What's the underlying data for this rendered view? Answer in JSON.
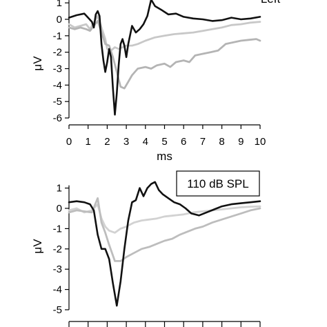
{
  "chart_data": [
    {
      "type": "line",
      "annotation": "Left",
      "xlabel": "ms",
      "ylabel": "μV",
      "xlim": [
        0,
        10
      ],
      "ylim": [
        -6,
        1
      ],
      "x_ticks": [
        "0",
        "1",
        "2",
        "3",
        "4",
        "5",
        "6",
        "7",
        "8",
        "9",
        "10"
      ],
      "y_ticks": [
        "1",
        "0",
        "-1",
        "-2",
        "-3",
        "-4",
        "-5",
        "-6"
      ],
      "grid": false,
      "series": [
        {
          "color": "#111111",
          "points": [
            [
              0,
              0.1
            ],
            [
              0.4,
              0.25
            ],
            [
              0.8,
              0.35
            ],
            [
              1.0,
              0.1
            ],
            [
              1.2,
              -0.15
            ],
            [
              1.3,
              -0.5
            ],
            [
              1.4,
              0.3
            ],
            [
              1.5,
              0.5
            ],
            [
              1.6,
              0.2
            ],
            [
              1.7,
              -1.5
            ],
            [
              1.8,
              -2.5
            ],
            [
              1.9,
              -3.2
            ],
            [
              2.0,
              -2.6
            ],
            [
              2.1,
              -1.8
            ],
            [
              2.2,
              -2.3
            ],
            [
              2.3,
              -4.2
            ],
            [
              2.4,
              -5.8
            ],
            [
              2.5,
              -4.5
            ],
            [
              2.6,
              -2.8
            ],
            [
              2.7,
              -1.5
            ],
            [
              2.8,
              -1.2
            ],
            [
              2.9,
              -1.6
            ],
            [
              3.0,
              -2.3
            ],
            [
              3.1,
              -1.5
            ],
            [
              3.3,
              -0.4
            ],
            [
              3.5,
              -0.8
            ],
            [
              3.7,
              -0.6
            ],
            [
              3.9,
              -0.3
            ],
            [
              4.1,
              0.2
            ],
            [
              4.3,
              1.2
            ],
            [
              4.5,
              0.8
            ],
            [
              4.8,
              0.6
            ],
            [
              5.2,
              0.3
            ],
            [
              5.6,
              0.35
            ],
            [
              6.0,
              0.15
            ],
            [
              6.5,
              0.05
            ],
            [
              7.0,
              0.0
            ],
            [
              7.5,
              -0.1
            ],
            [
              8.0,
              -0.05
            ],
            [
              8.5,
              0.1
            ],
            [
              9.0,
              0.0
            ],
            [
              9.5,
              0.05
            ],
            [
              10.0,
              0.15
            ]
          ]
        },
        {
          "color": "#c8c8c8",
          "points": [
            [
              0,
              -0.3
            ],
            [
              0.3,
              -0.5
            ],
            [
              0.6,
              -0.4
            ],
            [
              0.9,
              -0.3
            ],
            [
              1.1,
              -0.6
            ],
            [
              1.3,
              -0.2
            ],
            [
              1.5,
              0.2
            ],
            [
              1.7,
              -0.5
            ],
            [
              1.9,
              -1.2
            ],
            [
              2.0,
              -1.8
            ],
            [
              2.2,
              -1.9
            ],
            [
              2.4,
              -1.7
            ],
            [
              2.6,
              -1.8
            ],
            [
              2.8,
              -1.7
            ],
            [
              3.0,
              -1.6
            ],
            [
              3.3,
              -1.6
            ],
            [
              3.6,
              -1.5
            ],
            [
              4.0,
              -1.3
            ],
            [
              4.5,
              -1.1
            ],
            [
              5.0,
              -1.0
            ],
            [
              5.5,
              -0.9
            ],
            [
              6.0,
              -0.85
            ],
            [
              6.5,
              -0.8
            ],
            [
              7.0,
              -0.7
            ],
            [
              7.5,
              -0.6
            ],
            [
              8.0,
              -0.5
            ],
            [
              8.5,
              -0.35
            ],
            [
              9.0,
              -0.3
            ],
            [
              9.5,
              -0.2
            ],
            [
              10.0,
              -0.15
            ]
          ]
        },
        {
          "color": "#b4b4b4",
          "points": [
            [
              0,
              -0.5
            ],
            [
              0.3,
              -0.6
            ],
            [
              0.6,
              -0.5
            ],
            [
              0.9,
              -0.6
            ],
            [
              1.1,
              -0.7
            ],
            [
              1.3,
              -0.4
            ],
            [
              1.5,
              -0.1
            ],
            [
              1.7,
              -0.8
            ],
            [
              1.9,
              -1.5
            ],
            [
              2.1,
              -1.6
            ],
            [
              2.3,
              -2.3
            ],
            [
              2.5,
              -3.2
            ],
            [
              2.7,
              -4.1
            ],
            [
              2.9,
              -4.2
            ],
            [
              3.1,
              -3.8
            ],
            [
              3.3,
              -3.4
            ],
            [
              3.6,
              -3.0
            ],
            [
              4.0,
              -2.9
            ],
            [
              4.3,
              -3.0
            ],
            [
              4.6,
              -2.8
            ],
            [
              5.0,
              -2.7
            ],
            [
              5.3,
              -2.9
            ],
            [
              5.6,
              -2.6
            ],
            [
              6.0,
              -2.5
            ],
            [
              6.3,
              -2.6
            ],
            [
              6.6,
              -2.2
            ],
            [
              7.0,
              -2.1
            ],
            [
              7.4,
              -2.0
            ],
            [
              7.8,
              -1.9
            ],
            [
              8.2,
              -1.5
            ],
            [
              8.6,
              -1.4
            ],
            [
              9.0,
              -1.3
            ],
            [
              9.4,
              -1.25
            ],
            [
              9.8,
              -1.2
            ],
            [
              10.0,
              -1.3
            ]
          ]
        }
      ]
    },
    {
      "type": "line",
      "annotation": "110 dB SPL",
      "xlabel": "",
      "ylabel": "μV",
      "xlim": [
        0,
        10
      ],
      "ylim": [
        -5,
        1
      ],
      "x_ticks": [],
      "y_ticks": [
        "1",
        "0",
        "-1",
        "-2",
        "-3",
        "-4",
        "-5"
      ],
      "grid": false,
      "series": [
        {
          "color": "#111111",
          "points": [
            [
              0,
              0.3
            ],
            [
              0.4,
              0.35
            ],
            [
              0.8,
              0.3
            ],
            [
              1.1,
              0.2
            ],
            [
              1.3,
              -0.1
            ],
            [
              1.5,
              -1.3
            ],
            [
              1.7,
              -2.0
            ],
            [
              1.9,
              -2.0
            ],
            [
              2.1,
              -2.5
            ],
            [
              2.3,
              -3.7
            ],
            [
              2.5,
              -4.8
            ],
            [
              2.7,
              -3.6
            ],
            [
              2.9,
              -2.0
            ],
            [
              3.1,
              -0.6
            ],
            [
              3.3,
              0.3
            ],
            [
              3.5,
              0.4
            ],
            [
              3.7,
              1.0
            ],
            [
              3.9,
              0.6
            ],
            [
              4.1,
              1.0
            ],
            [
              4.3,
              1.2
            ],
            [
              4.5,
              1.3
            ],
            [
              4.7,
              0.9
            ],
            [
              4.9,
              0.7
            ],
            [
              5.2,
              0.5
            ],
            [
              5.5,
              0.3
            ],
            [
              5.8,
              0.2
            ],
            [
              6.1,
              0.0
            ],
            [
              6.4,
              -0.25
            ],
            [
              6.8,
              -0.35
            ],
            [
              7.2,
              -0.2
            ],
            [
              7.6,
              -0.05
            ],
            [
              8.0,
              0.1
            ],
            [
              8.5,
              0.2
            ],
            [
              9.0,
              0.25
            ],
            [
              9.5,
              0.3
            ],
            [
              10.0,
              0.35
            ]
          ]
        },
        {
          "color": "#d2d2d2",
          "points": [
            [
              0,
              -0.1
            ],
            [
              0.4,
              0.0
            ],
            [
              0.8,
              -0.2
            ],
            [
              1.2,
              -0.1
            ],
            [
              1.5,
              0.2
            ],
            [
              1.7,
              -0.5
            ],
            [
              1.9,
              -0.9
            ],
            [
              2.1,
              -1.1
            ],
            [
              2.4,
              -1.2
            ],
            [
              2.7,
              -1.0
            ],
            [
              3.0,
              -0.9
            ],
            [
              3.4,
              -0.7
            ],
            [
              3.8,
              -0.6
            ],
            [
              4.2,
              -0.55
            ],
            [
              4.6,
              -0.5
            ],
            [
              5.0,
              -0.4
            ],
            [
              5.5,
              -0.35
            ],
            [
              6.0,
              -0.3
            ],
            [
              6.5,
              -0.2
            ],
            [
              7.0,
              -0.15
            ],
            [
              7.5,
              -0.1
            ],
            [
              8.0,
              -0.05
            ],
            [
              8.5,
              0.0
            ],
            [
              9.0,
              0.05
            ],
            [
              9.5,
              0.08
            ],
            [
              10.0,
              0.1
            ]
          ]
        },
        {
          "color": "#bdbdbd",
          "points": [
            [
              0,
              -0.2
            ],
            [
              0.4,
              -0.1
            ],
            [
              0.8,
              -0.15
            ],
            [
              1.2,
              -0.2
            ],
            [
              1.5,
              0.5
            ],
            [
              1.7,
              -0.7
            ],
            [
              1.9,
              -1.2
            ],
            [
              2.1,
              -1.8
            ],
            [
              2.4,
              -2.6
            ],
            [
              2.7,
              -2.6
            ],
            [
              3.0,
              -2.4
            ],
            [
              3.4,
              -2.2
            ],
            [
              3.8,
              -2.0
            ],
            [
              4.2,
              -1.9
            ],
            [
              4.6,
              -1.75
            ],
            [
              5.0,
              -1.6
            ],
            [
              5.4,
              -1.5
            ],
            [
              5.8,
              -1.3
            ],
            [
              6.2,
              -1.15
            ],
            [
              6.6,
              -1.0
            ],
            [
              7.0,
              -0.9
            ],
            [
              7.5,
              -0.7
            ],
            [
              8.0,
              -0.55
            ],
            [
              8.5,
              -0.4
            ],
            [
              9.0,
              -0.25
            ],
            [
              9.5,
              -0.1
            ],
            [
              10.0,
              0.0
            ]
          ]
        }
      ]
    }
  ]
}
